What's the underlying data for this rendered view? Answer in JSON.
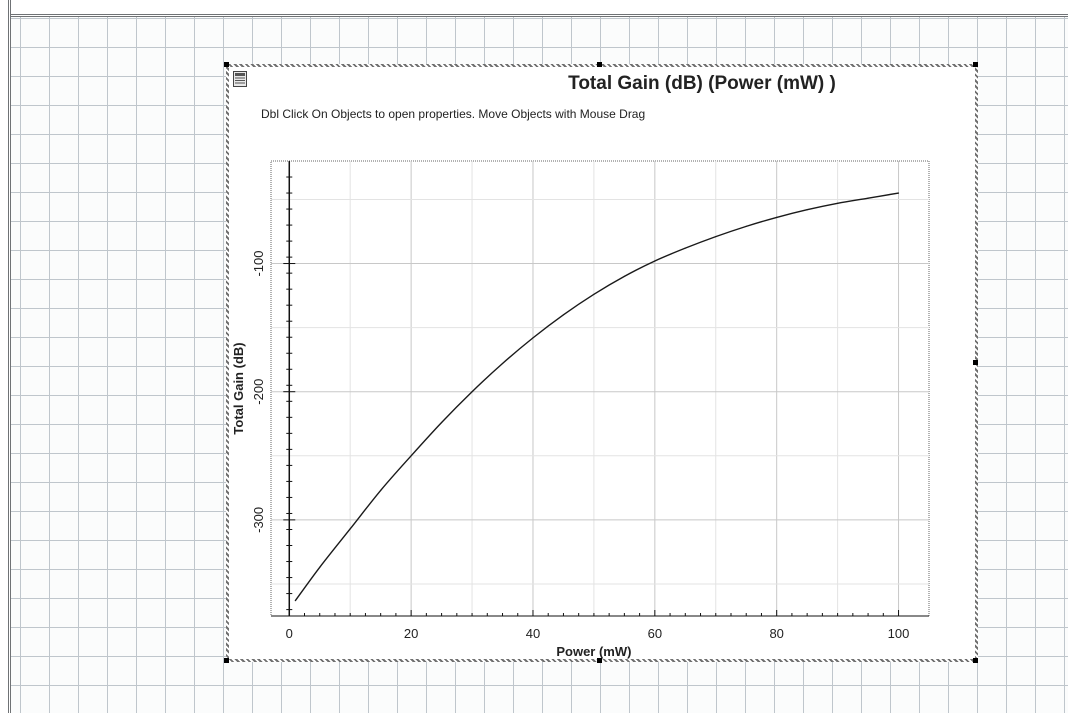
{
  "window": {
    "hint": "Dbl Click On Objects to open properties.  Move Objects with Mouse Drag"
  },
  "chart_data": {
    "type": "line",
    "title": "Total Gain (dB) (Power (mW) )",
    "xlabel": "Power (mW)",
    "ylabel": "Total Gain (dB)",
    "xlim": [
      -3,
      105
    ],
    "ylim": [
      -375,
      -20
    ],
    "x_ticks": [
      0,
      20,
      40,
      60,
      80,
      100
    ],
    "y_ticks": [
      -100,
      -200,
      -300
    ],
    "grid": true,
    "series": [
      {
        "color": "#1a1a1a",
        "x": [
          1,
          5,
          10,
          15,
          20,
          25,
          30,
          35,
          40,
          45,
          50,
          55,
          60,
          65,
          70,
          75,
          80,
          85,
          90,
          95,
          100
        ],
        "y": [
          -363,
          -337,
          -307,
          -277,
          -250,
          -224,
          -200,
          -178,
          -158,
          -140,
          -124,
          -110,
          -98,
          -88,
          -79,
          -71,
          -64,
          -58,
          -53,
          -49,
          -45
        ]
      }
    ]
  }
}
